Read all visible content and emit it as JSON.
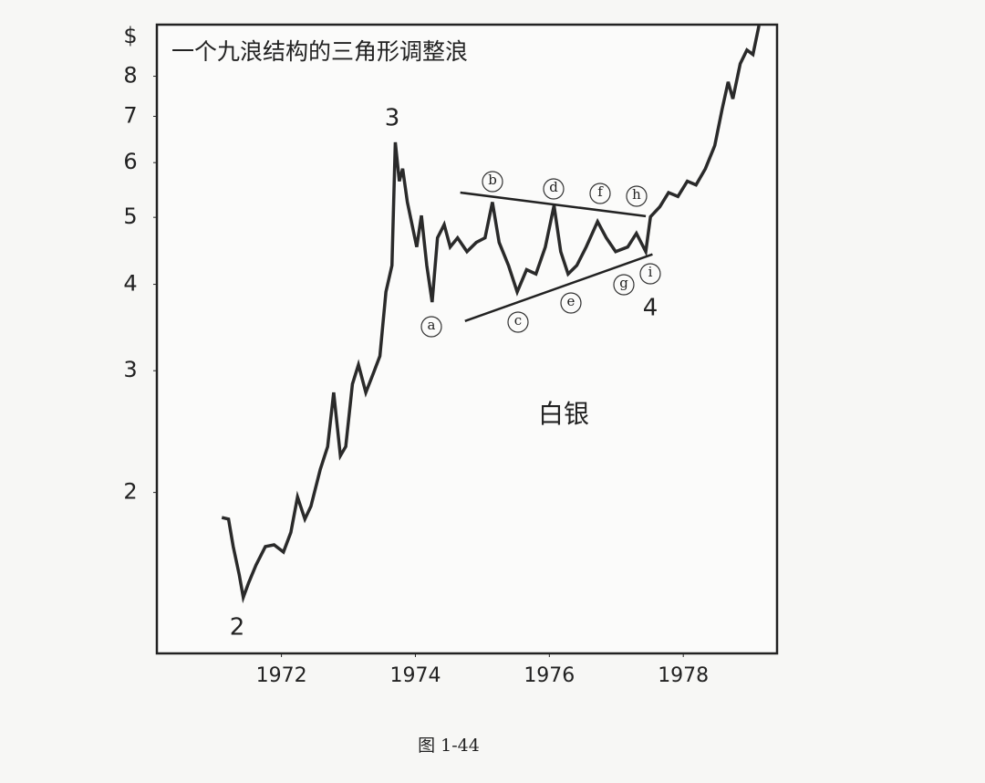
{
  "chart_data": {
    "type": "line",
    "title": "一个九浪结构的三角形调整浪",
    "y_unit": "$",
    "x": [
      1971.11,
      1971.21,
      1971.28,
      1971.37,
      1971.43,
      1971.51,
      1971.62,
      1971.76,
      1971.89,
      1972.03,
      1972.14,
      1972.24,
      1972.35,
      1972.44,
      1972.58,
      1972.69,
      1972.78,
      1972.88,
      1972.96,
      1973.06,
      1973.15,
      1973.26,
      1973.37,
      1973.47,
      1973.56,
      1973.65,
      1973.7,
      1973.76,
      1973.81,
      1973.88,
      1973.95,
      1974.02,
      1974.09,
      1974.17,
      1974.25,
      1974.33,
      1974.43,
      1974.52,
      1974.63,
      1974.77,
      1974.91,
      1975.04,
      1975.15,
      1975.25,
      1975.39,
      1975.52,
      1975.66,
      1975.8,
      1975.94,
      1976.07,
      1976.17,
      1976.28,
      1976.41,
      1976.55,
      1976.72,
      1976.85,
      1976.99,
      1977.17,
      1977.3,
      1977.44,
      1977.51,
      1977.65,
      1977.78,
      1977.92,
      1978.06,
      1978.19,
      1978.33,
      1978.47,
      1978.58,
      1978.67,
      1978.74,
      1978.85,
      1978.95,
      1979.04,
      1979.13
    ],
    "series": [
      {
        "name": "白银",
        "color": "#2a2a2a",
        "values": [
          1.84,
          1.83,
          1.67,
          1.52,
          1.41,
          1.48,
          1.57,
          1.67,
          1.68,
          1.64,
          1.75,
          1.97,
          1.83,
          1.91,
          2.16,
          2.33,
          2.79,
          2.26,
          2.33,
          2.87,
          3.06,
          2.79,
          2.97,
          3.15,
          3.9,
          4.26,
          6.42,
          5.64,
          5.88,
          5.26,
          4.88,
          4.53,
          5.03,
          4.26,
          3.77,
          4.67,
          4.88,
          4.53,
          4.67,
          4.46,
          4.6,
          4.67,
          5.26,
          4.6,
          4.26,
          3.9,
          4.2,
          4.14,
          4.53,
          5.2,
          4.46,
          4.14,
          4.26,
          4.53,
          4.93,
          4.67,
          4.46,
          4.53,
          4.74,
          4.46,
          5.01,
          5.18,
          5.43,
          5.36,
          5.64,
          5.57,
          5.88,
          6.35,
          7.17,
          7.85,
          7.42,
          8.34,
          8.73,
          8.6,
          9.47
        ]
      }
    ],
    "trendlines": [
      {
        "x": [
          1974.67,
          1977.44
        ],
        "values": [
          5.43,
          5.02
        ]
      },
      {
        "x": [
          1974.74,
          1977.54
        ],
        "values": [
          3.54,
          4.42
        ]
      }
    ],
    "xlim": [
      1970.14,
      1979.4
    ],
    "xticks": [
      1972,
      1974,
      1976,
      1978
    ],
    "ylim": [
      1.17,
      9.5
    ],
    "yticks": [
      2,
      3,
      4,
      5,
      6,
      7,
      8
    ],
    "log_y": true,
    "grid": false,
    "wave_labels": [
      "2",
      "3",
      "4"
    ],
    "sub_wave_labels": [
      "a",
      "b",
      "c",
      "d",
      "e",
      "f",
      "g",
      "h",
      "i"
    ],
    "annotation": "白银"
  },
  "caption": "图 1-44"
}
